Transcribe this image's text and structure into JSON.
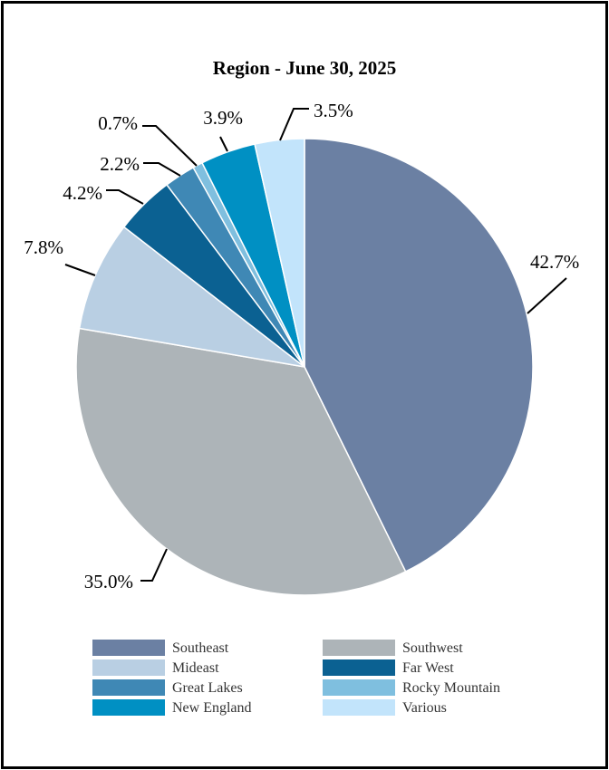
{
  "chart_data": {
    "type": "pie",
    "title": "Region - June 30, 2025",
    "unit": "%",
    "slices": [
      {
        "name": "Southeast",
        "value": 42.7,
        "label": "42.7%",
        "color": "#6b80a3"
      },
      {
        "name": "Southwest",
        "value": 35.0,
        "label": "35.0%",
        "color": "#adb4b8"
      },
      {
        "name": "Mideast",
        "value": 7.8,
        "label": "7.8%",
        "color": "#b9cfe3"
      },
      {
        "name": "Far West",
        "value": 4.2,
        "label": "4.2%",
        "color": "#0b6192"
      },
      {
        "name": "Great Lakes",
        "value": 2.2,
        "label": "2.2%",
        "color": "#3f88b5"
      },
      {
        "name": "Rocky Mountain",
        "value": 0.7,
        "label": "0.7%",
        "color": "#7fbfdf"
      },
      {
        "name": "New England",
        "value": 3.9,
        "label": "3.9%",
        "color": "#0090c3"
      },
      {
        "name": "Various",
        "value": 3.5,
        "label": "3.5%",
        "color": "#c2e4fb"
      }
    ],
    "legend_order": [
      "Southeast",
      "Southwest",
      "Mideast",
      "Far West",
      "Great Lakes",
      "Rocky Mountain",
      "New England",
      "Various"
    ],
    "legend_position": "bottom",
    "start_angle": "12 o'clock",
    "direction": "clockwise"
  }
}
